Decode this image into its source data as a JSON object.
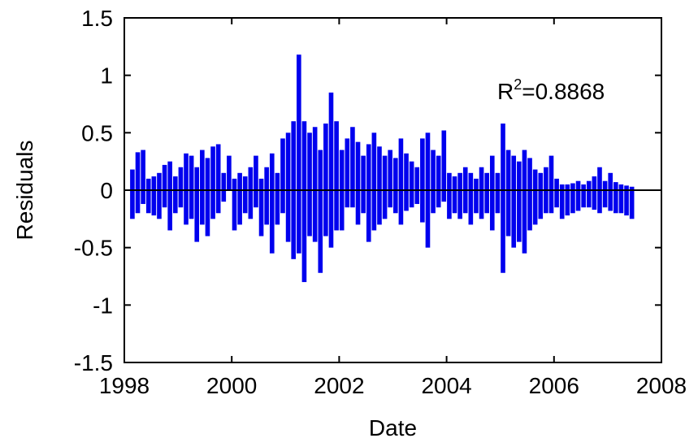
{
  "chart_data": {
    "type": "bar",
    "xlabel": "Date",
    "ylabel": "Residuals",
    "xlim": [
      1998,
      2008
    ],
    "ylim": [
      -1.5,
      1.5
    ],
    "x_ticks": [
      "1998",
      "2000",
      "2002",
      "2004",
      "2006",
      "2008"
    ],
    "y_ticks": [
      "1.5",
      "1",
      "0.5",
      "0",
      "-0.5",
      "-1",
      "-1.5"
    ],
    "annotation": {
      "text": "R",
      "sup": "2",
      "value": "=0.8868"
    },
    "grid": false,
    "series_color": "#0000ee",
    "zero_line": 0,
    "x": [
      1998.15,
      1998.25,
      1998.35,
      1998.45,
      1998.55,
      1998.65,
      1998.75,
      1998.85,
      1998.95,
      1999.05,
      1999.15,
      1999.25,
      1999.35,
      1999.45,
      1999.55,
      1999.65,
      1999.75,
      1999.85,
      1999.95,
      2000.05,
      2000.15,
      2000.25,
      2000.35,
      2000.45,
      2000.55,
      2000.65,
      2000.75,
      2000.85,
      2000.95,
      2001.05,
      2001.15,
      2001.25,
      2001.35,
      2001.45,
      2001.55,
      2001.65,
      2001.75,
      2001.85,
      2001.95,
      2002.05,
      2002.15,
      2002.25,
      2002.35,
      2002.45,
      2002.55,
      2002.65,
      2002.75,
      2002.85,
      2002.95,
      2003.05,
      2003.15,
      2003.25,
      2003.35,
      2003.45,
      2003.55,
      2003.65,
      2003.75,
      2003.85,
      2003.95,
      2004.05,
      2004.15,
      2004.25,
      2004.35,
      2004.45,
      2004.55,
      2004.65,
      2004.75,
      2004.85,
      2004.95,
      2005.05,
      2005.15,
      2005.25,
      2005.35,
      2005.45,
      2005.55,
      2005.65,
      2005.75,
      2005.85,
      2005.95,
      2006.05,
      2006.15,
      2006.25,
      2006.35,
      2006.45,
      2006.55,
      2006.65,
      2006.75,
      2006.85,
      2006.95,
      2007.05,
      2007.15,
      2007.25,
      2007.35,
      2007.45
    ],
    "high": [
      0.18,
      0.33,
      0.35,
      0.1,
      0.12,
      0.15,
      0.22,
      0.25,
      0.12,
      0.2,
      0.32,
      0.3,
      0.2,
      0.35,
      0.28,
      0.38,
      0.4,
      0.15,
      0.3,
      0.1,
      0.15,
      0.12,
      0.2,
      0.3,
      0.1,
      0.2,
      0.32,
      0.15,
      0.45,
      0.5,
      0.6,
      1.18,
      0.6,
      0.5,
      0.55,
      0.35,
      0.58,
      0.85,
      0.6,
      0.35,
      0.45,
      0.55,
      0.42,
      0.3,
      0.4,
      0.5,
      0.38,
      0.3,
      0.35,
      0.28,
      0.45,
      0.32,
      0.25,
      0.2,
      0.45,
      0.5,
      0.35,
      0.3,
      0.52,
      0.15,
      0.12,
      0.15,
      0.2,
      0.15,
      0.1,
      0.2,
      0.15,
      0.3,
      0.15,
      0.58,
      0.35,
      0.3,
      0.25,
      0.35,
      0.28,
      0.18,
      0.15,
      0.2,
      0.3,
      0.1,
      0.05,
      0.05,
      0.06,
      0.08,
      0.05,
      0.08,
      0.12,
      0.2,
      0.08,
      0.15,
      0.07,
      0.05,
      0.04,
      0.03
    ],
    "low": [
      -0.25,
      -0.2,
      -0.12,
      -0.2,
      -0.22,
      -0.25,
      -0.15,
      -0.35,
      -0.2,
      -0.15,
      -0.3,
      -0.25,
      -0.45,
      -0.3,
      -0.4,
      -0.25,
      -0.2,
      -0.1,
      0.0,
      -0.35,
      -0.3,
      -0.2,
      -0.25,
      -0.15,
      -0.4,
      -0.3,
      -0.55,
      -0.3,
      -0.2,
      -0.45,
      -0.6,
      -0.55,
      -0.8,
      -0.4,
      -0.45,
      -0.72,
      -0.4,
      -0.5,
      -0.35,
      -0.35,
      -0.15,
      -0.15,
      -0.3,
      -0.2,
      -0.45,
      -0.35,
      -0.3,
      -0.25,
      -0.15,
      -0.2,
      -0.3,
      -0.18,
      -0.15,
      -0.12,
      -0.28,
      -0.5,
      -0.2,
      -0.15,
      -0.1,
      -0.25,
      -0.2,
      -0.25,
      -0.2,
      -0.3,
      -0.2,
      -0.25,
      -0.2,
      -0.35,
      -0.2,
      -0.72,
      -0.4,
      -0.5,
      -0.45,
      -0.55,
      -0.35,
      -0.3,
      -0.25,
      -0.2,
      -0.2,
      -0.15,
      -0.25,
      -0.22,
      -0.2,
      -0.18,
      -0.15,
      -0.15,
      -0.17,
      -0.2,
      -0.15,
      -0.18,
      -0.2,
      -0.2,
      -0.22,
      -0.25
    ]
  }
}
